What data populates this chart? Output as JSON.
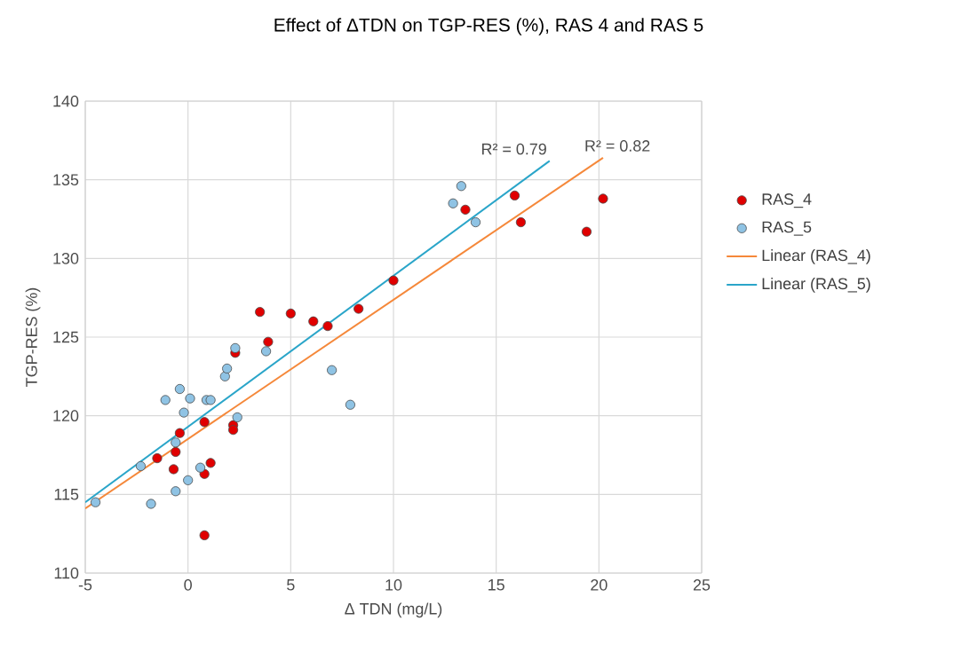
{
  "chart_data": {
    "type": "scatter",
    "title": "Effect of ΔTDN on TGP-RES (%), RAS 4 and RAS 5",
    "xlabel": "Δ TDN (mg/L)",
    "ylabel": "TGP-RES (%)",
    "xlim": [
      -5,
      25
    ],
    "xticks": [
      -5,
      0,
      5,
      10,
      15,
      20,
      25
    ],
    "ylim": [
      110,
      140
    ],
    "yticks": [
      110,
      115,
      120,
      125,
      130,
      135,
      140
    ],
    "grid": true,
    "legend": "right",
    "annotations": [
      "R² = 0.79",
      "R² = 0.82"
    ],
    "series": [
      {
        "name": "RAS_4",
        "marker": "circle",
        "color": "#e00000",
        "x": [
          -1.5,
          -0.6,
          -0.7,
          -0.4,
          0.8,
          0.8,
          1.1,
          0.8,
          2.2,
          2.2,
          2.3,
          3.5,
          3.9,
          5.0,
          6.1,
          6.8,
          8.3,
          10.0,
          13.5,
          15.9,
          16.2,
          19.4,
          20.2
        ],
        "values": [
          117.3,
          117.7,
          116.6,
          118.9,
          119.6,
          116.3,
          117.0,
          112.4,
          119.4,
          119.1,
          124.0,
          126.6,
          124.7,
          126.5,
          126.0,
          125.7,
          126.8,
          128.6,
          133.1,
          134.0,
          132.3,
          131.7,
          133.8
        ]
      },
      {
        "name": "RAS_5",
        "marker": "circle",
        "color": "#8fc3e4",
        "x": [
          -4.5,
          -2.3,
          -1.8,
          -1.1,
          -0.6,
          -0.6,
          -0.4,
          -0.2,
          0.1,
          0.0,
          0.6,
          0.9,
          1.1,
          1.8,
          1.9,
          2.3,
          2.4,
          3.8,
          7.0,
          7.9,
          12.9,
          13.3,
          14.0
        ],
        "values": [
          114.5,
          116.8,
          114.4,
          121.0,
          115.2,
          118.3,
          121.7,
          120.2,
          121.1,
          115.9,
          116.7,
          121.0,
          121.0,
          122.5,
          123.0,
          124.3,
          119.9,
          124.1,
          122.9,
          120.7,
          133.5,
          134.6,
          132.3
        ]
      },
      {
        "name": "Linear (RAS_4)",
        "type": "line",
        "marker": "none",
        "color": "#f5883a",
        "x": [
          -5,
          20.2
        ],
        "values": [
          114.1,
          136.4
        ]
      },
      {
        "name": "Linear (RAS_5)",
        "type": "line",
        "marker": "none",
        "color": "#2aa5c9",
        "x": [
          -5,
          17.6
        ],
        "values": [
          114.5,
          136.2
        ]
      }
    ]
  }
}
